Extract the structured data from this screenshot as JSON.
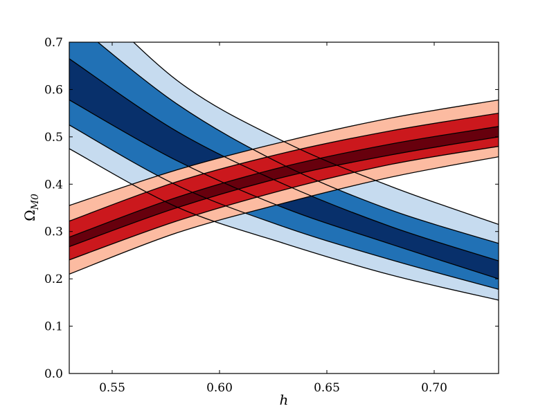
{
  "chart_data": {
    "type": "area",
    "xlabel": "h",
    "ylabel_main": "Ω",
    "ylabel_sub": "M0",
    "xlim": [
      0.53,
      0.73
    ],
    "ylim": [
      0.0,
      0.7
    ],
    "grid": false,
    "xticks": [
      0.55,
      0.6,
      0.65,
      0.7
    ],
    "xtick_labels": [
      "0.55",
      "0.60",
      "0.65",
      "0.70"
    ],
    "yticks": [
      0.0,
      0.1,
      0.2,
      0.3,
      0.4,
      0.5,
      0.6,
      0.7
    ],
    "ytick_labels": [
      "0.0",
      "0.1",
      "0.2",
      "0.3",
      "0.4",
      "0.5",
      "0.6",
      "0.7"
    ],
    "bands": [
      {
        "group": "blue",
        "level": 3,
        "color": "#c6dbef",
        "upper": [
          [
            0.53,
            0.835
          ],
          [
            0.58,
            0.62
          ],
          [
            0.63,
            0.49
          ],
          [
            0.68,
            0.395
          ],
          [
            0.73,
            0.315
          ]
        ],
        "lower": [
          [
            0.53,
            0.475
          ],
          [
            0.58,
            0.352
          ],
          [
            0.63,
            0.275
          ],
          [
            0.68,
            0.208
          ],
          [
            0.73,
            0.155
          ]
        ]
      },
      {
        "group": "blue",
        "level": 2,
        "color": "#2171b5",
        "upper": [
          [
            0.53,
            0.75
          ],
          [
            0.58,
            0.57
          ],
          [
            0.63,
            0.44
          ],
          [
            0.68,
            0.345
          ],
          [
            0.73,
            0.275
          ]
        ],
        "lower": [
          [
            0.53,
            0.525
          ],
          [
            0.58,
            0.398
          ],
          [
            0.63,
            0.31
          ],
          [
            0.68,
            0.24
          ],
          [
            0.73,
            0.178
          ]
        ]
      },
      {
        "group": "blue",
        "level": 1,
        "color": "#08306b",
        "upper": [
          [
            0.53,
            0.665
          ],
          [
            0.58,
            0.512
          ],
          [
            0.63,
            0.4
          ],
          [
            0.68,
            0.31
          ],
          [
            0.73,
            0.238
          ]
        ],
        "lower": [
          [
            0.53,
            0.578
          ],
          [
            0.58,
            0.45
          ],
          [
            0.63,
            0.35
          ],
          [
            0.68,
            0.273
          ],
          [
            0.73,
            0.2
          ]
        ]
      },
      {
        "group": "red",
        "level": 3,
        "color": "#fcbba1",
        "upper": [
          [
            0.53,
            0.355
          ],
          [
            0.58,
            0.43
          ],
          [
            0.63,
            0.49
          ],
          [
            0.68,
            0.54
          ],
          [
            0.73,
            0.578
          ]
        ],
        "lower": [
          [
            0.53,
            0.21
          ],
          [
            0.58,
            0.297
          ],
          [
            0.63,
            0.36
          ],
          [
            0.68,
            0.415
          ],
          [
            0.73,
            0.458
          ]
        ]
      },
      {
        "group": "red",
        "level": 2,
        "color": "#cb181d",
        "upper": [
          [
            0.53,
            0.322
          ],
          [
            0.58,
            0.405
          ],
          [
            0.63,
            0.466
          ],
          [
            0.68,
            0.513
          ],
          [
            0.73,
            0.55
          ]
        ],
        "lower": [
          [
            0.53,
            0.24
          ],
          [
            0.58,
            0.322
          ],
          [
            0.63,
            0.388
          ],
          [
            0.68,
            0.442
          ],
          [
            0.73,
            0.48
          ]
        ]
      },
      {
        "group": "red",
        "level": 1,
        "color": "#67000d",
        "upper": [
          [
            0.53,
            0.288
          ],
          [
            0.58,
            0.372
          ],
          [
            0.63,
            0.437
          ],
          [
            0.68,
            0.485
          ],
          [
            0.73,
            0.522
          ]
        ],
        "lower": [
          [
            0.53,
            0.268
          ],
          [
            0.58,
            0.35
          ],
          [
            0.63,
            0.415
          ],
          [
            0.68,
            0.462
          ],
          [
            0.73,
            0.5
          ]
        ]
      }
    ]
  }
}
